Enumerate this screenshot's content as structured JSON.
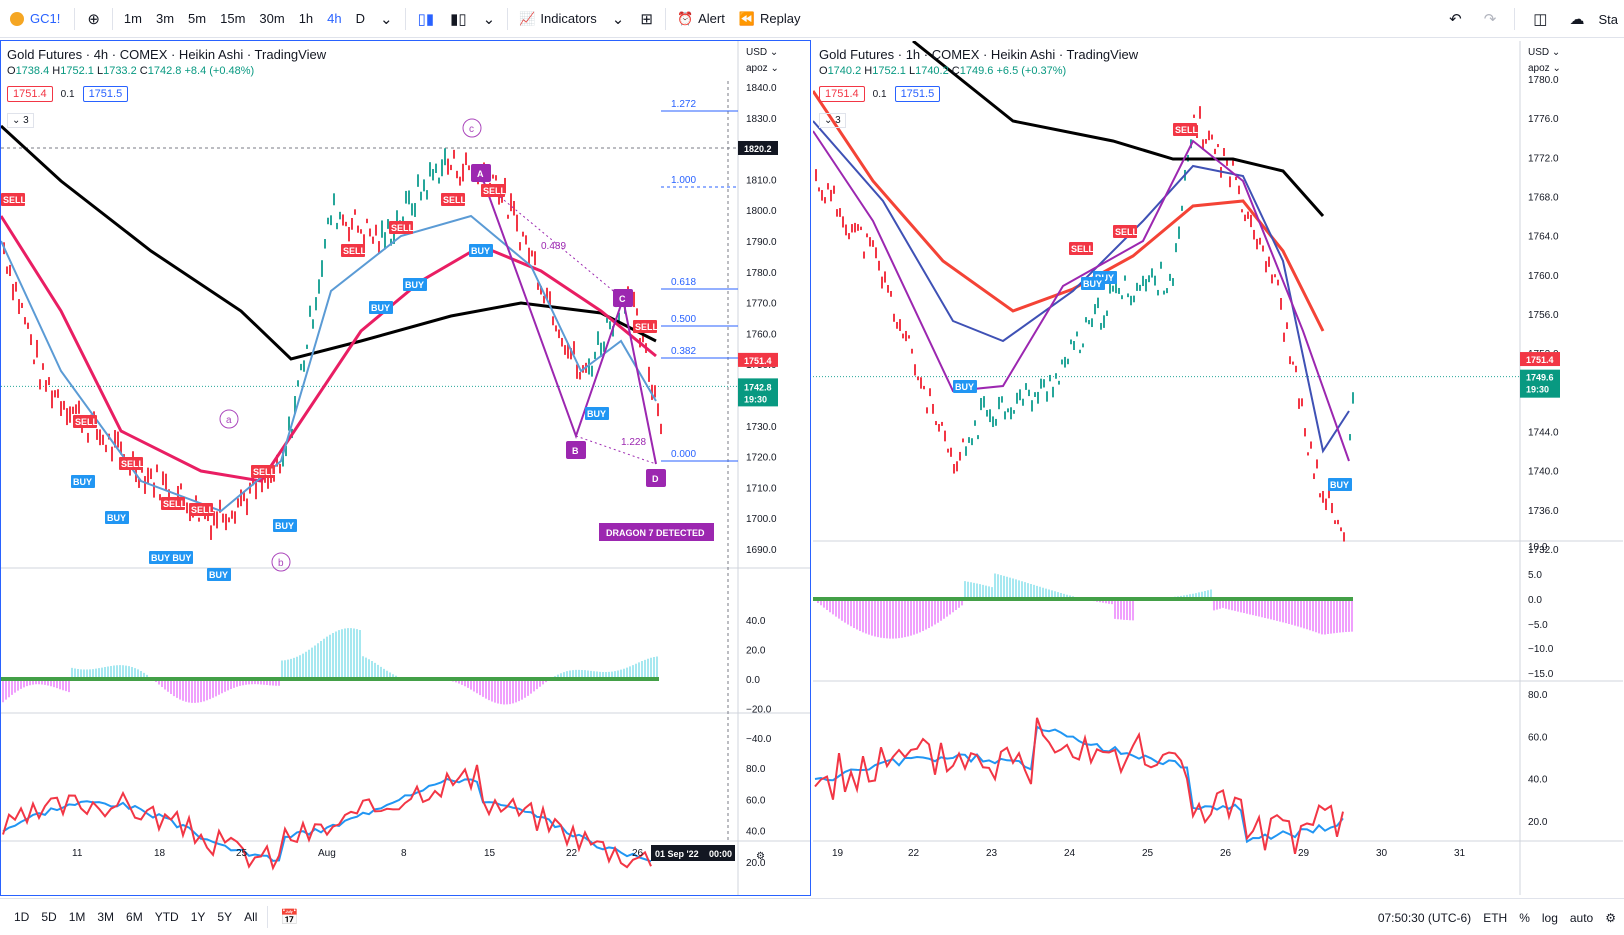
{
  "toolbar": {
    "symbol": "GC1!",
    "intervals": [
      "1m",
      "3m",
      "5m",
      "15m",
      "30m",
      "1h",
      "4h",
      "D"
    ],
    "active_interval": "4h",
    "indicators_label": "Indicators",
    "alert_label": "Alert",
    "replay_label": "Replay",
    "right_label": "Sta"
  },
  "bottom": {
    "ranges": [
      "1D",
      "5D",
      "1M",
      "3M",
      "6M",
      "YTD",
      "1Y",
      "5Y",
      "All"
    ],
    "time": "07:50:30 (UTC-6)",
    "session": "ETH",
    "percent": "%",
    "log": "log",
    "auto": "auto"
  },
  "left_chart": {
    "title": "Gold Futures · 4h · COMEX · Heikin Ashi · TradingView",
    "ohlc": {
      "o": "1738.4",
      "h": "1752.1",
      "l": "1733.2",
      "c": "1742.8",
      "chg": "+8.4 (+0.48%)"
    },
    "sell_box": "1751.4",
    "qty": "0.1",
    "buy_box": "1751.5",
    "collapse": "3",
    "currency": "USD",
    "apoz": "apoz",
    "price_ticks": [
      "1840.0",
      "1830.0",
      "1820.0",
      "1810.0",
      "1800.0",
      "1790.0",
      "1780.0",
      "1770.0",
      "1760.0",
      "1750.0",
      "1740.0",
      "1730.0",
      "1720.0",
      "1710.0",
      "1700.0",
      "1690.0"
    ],
    "crosshair_price": "1820.2",
    "last_price_tag": "1751.4",
    "current_price_tag": "1742.8",
    "countdown": "19:30",
    "fib_levels": [
      "1.272",
      "1.000",
      "0.618",
      "0.500",
      "0.382",
      "0.000"
    ],
    "pattern_points": [
      "A",
      "B",
      "C",
      "D"
    ],
    "wave_labels": [
      "a",
      "b",
      "c"
    ],
    "ratio_labels": [
      "0.489",
      "1.228"
    ],
    "detected_label": "DRAGON 7 DETECTED",
    "macd_ticks": [
      "40.0",
      "20.0",
      "0.0",
      "−20.0",
      "−40.0"
    ],
    "rsi_ticks": [
      "80.0",
      "60.0",
      "40.0",
      "20.0"
    ],
    "time_ticks": [
      "11",
      "18",
      "25",
      "Aug",
      "8",
      "15",
      "22",
      "26"
    ],
    "cursor_time": "01 Sep '22",
    "cursor_clock": "00:00"
  },
  "right_chart": {
    "title": "Gold Futures · 1h · COMEX · Heikin Ashi · TradingView",
    "ohlc": {
      "o": "1740.2",
      "h": "1752.1",
      "l": "1740.2",
      "c": "1749.6",
      "chg": "+6.5 (+0.37%)"
    },
    "sell_box": "1751.4",
    "qty": "0.1",
    "buy_box": "1751.5",
    "collapse": "3",
    "currency": "USD",
    "apoz": "apoz",
    "price_ticks": [
      "1780.0",
      "1776.0",
      "1772.0",
      "1768.0",
      "1764.0",
      "1760.0",
      "1756.0",
      "1752.0",
      "1748.0",
      "1744.0",
      "1740.0",
      "1736.0",
      "1732.0"
    ],
    "last_price_tag": "1751.4",
    "current_price_tag": "1749.6",
    "countdown": "19:30",
    "macd_ticks": [
      "10.0",
      "5.0",
      "0.0",
      "−5.0",
      "−10.0",
      "−15.0"
    ],
    "rsi_ticks": [
      "80.0",
      "60.0",
      "40.0",
      "20.0"
    ],
    "time_ticks": [
      "19",
      "22",
      "23",
      "24",
      "25",
      "26",
      "29",
      "30",
      "31"
    ]
  },
  "signals": {
    "buy": "BUY",
    "sell": "SELL",
    "buybuy": "BUY BUY"
  },
  "colors": {
    "accent": "#2962ff",
    "up": "#26a69a",
    "down": "#f23645",
    "ma_black": "#000000",
    "ma_crimson": "#e91e63",
    "pattern": "#9c27b0",
    "fib": "#2962ff"
  }
}
